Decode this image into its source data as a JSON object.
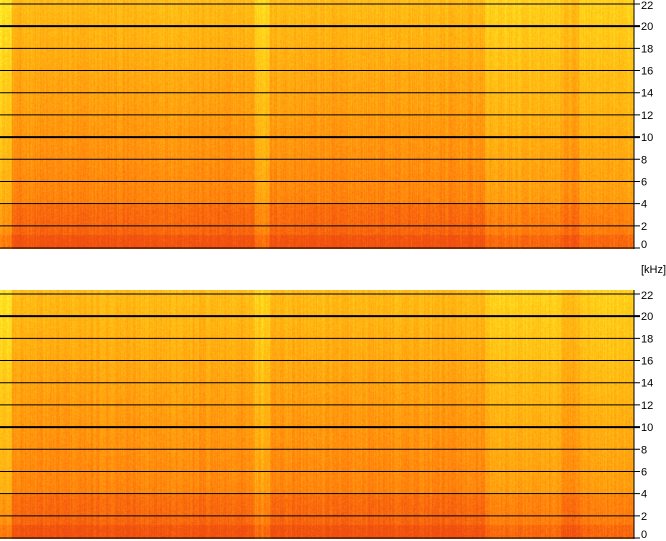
{
  "chart_data": [
    {
      "type": "heatmap",
      "title": "",
      "xlabel": "",
      "ylabel": "[kHz]",
      "y_ticks": [
        0,
        2,
        4,
        6,
        8,
        10,
        12,
        14,
        16,
        18,
        20,
        22
      ],
      "ylim": [
        0,
        22
      ],
      "grid": true,
      "major_gridlines": [
        10,
        20
      ],
      "colormap": [
        "#ffff33",
        "#ffd21a",
        "#ffaa10",
        "#ff7a0c",
        "#f04e10"
      ]
    },
    {
      "type": "heatmap",
      "title": "",
      "xlabel": "",
      "ylabel": "[kHz]",
      "y_ticks": [
        0,
        2,
        4,
        6,
        8,
        10,
        12,
        14,
        16,
        18,
        20,
        22
      ],
      "ylim": [
        0,
        22
      ],
      "grid": true,
      "major_gridlines": [
        10,
        20
      ],
      "colormap": [
        "#ffff33",
        "#ffd21a",
        "#ffaa10",
        "#ff7a0c",
        "#f04e10"
      ]
    }
  ],
  "axis_unit": "[kHz]"
}
